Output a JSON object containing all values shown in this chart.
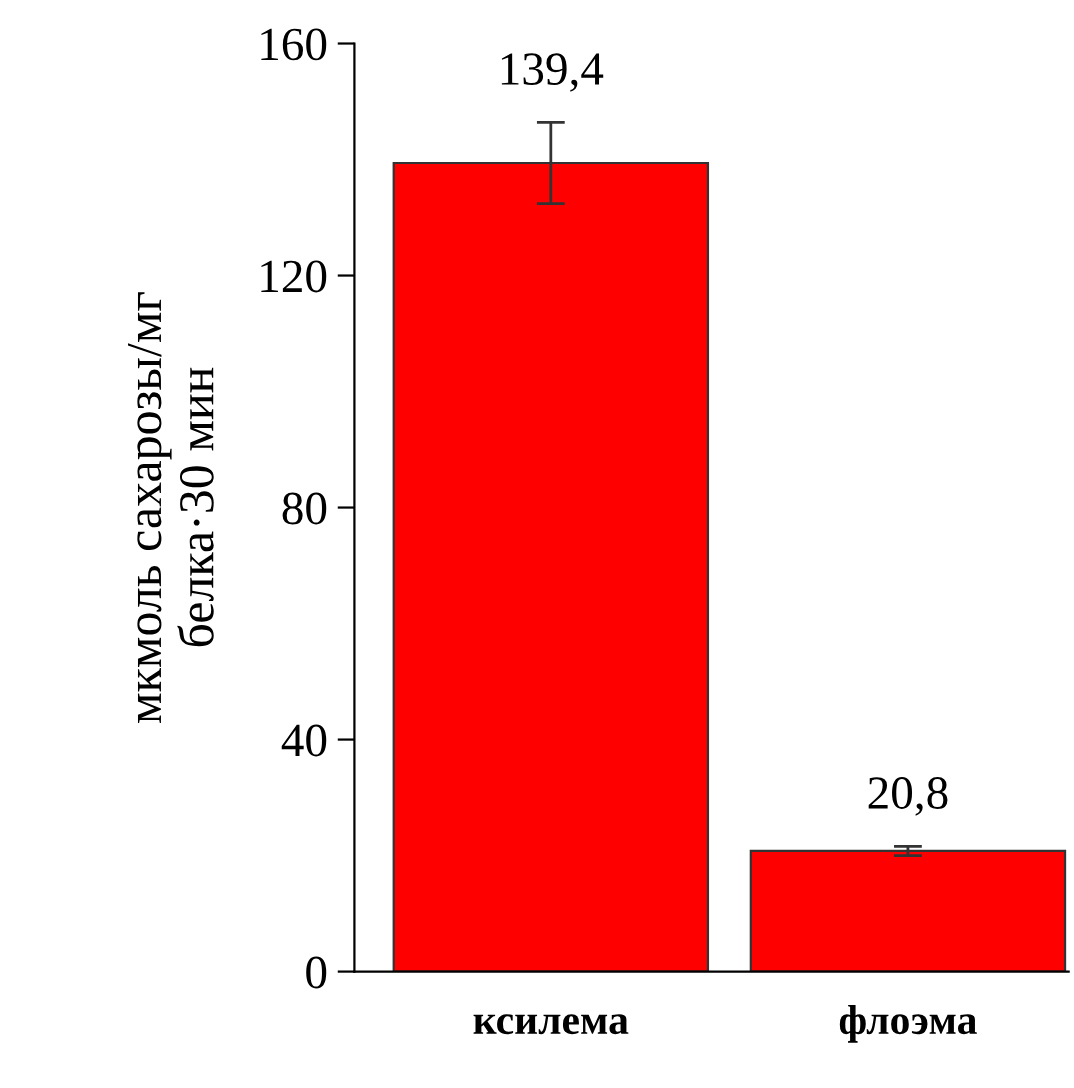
{
  "chart_data": {
    "type": "bar",
    "ylabel": "мкмоль сахарозы/мг\nбелка·30 мин",
    "categories": [
      "ксилема",
      "флоэма"
    ],
    "values": [
      139.4,
      20.8
    ],
    "errors": [
      7,
      0.8
    ],
    "value_labels": [
      "139,4",
      "20,8"
    ],
    "color": "#ff0000",
    "ylim": [
      0,
      160
    ],
    "yticks": [
      0,
      40,
      80,
      120,
      160
    ],
    "grid": false,
    "legend": false
  }
}
